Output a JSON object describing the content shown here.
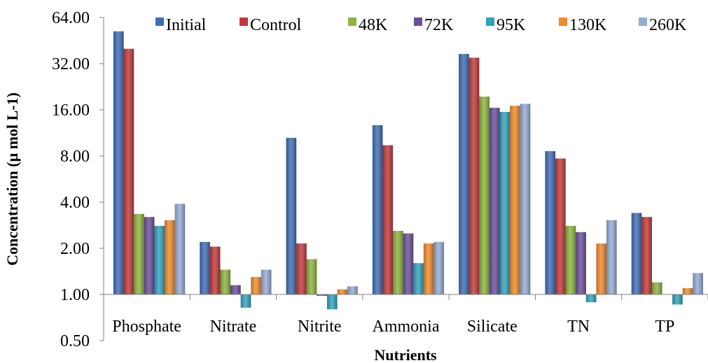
{
  "chart_data": {
    "type": "bar",
    "xlabel": "Nutrients",
    "ylabel": "Concentration (μ mol L-1)",
    "y_scale": "log2",
    "ylim": [
      0.5,
      64
    ],
    "yticks": [
      "0.50",
      "1.00",
      "2.00",
      "4.00",
      "8.00",
      "16.00",
      "32.00",
      "64.00"
    ],
    "legend_position": "top",
    "grid": false,
    "categories": [
      "Phosphate",
      "Nitrate",
      "Nitrite",
      "Ammonia",
      "Silicate",
      "TN",
      "TP"
    ],
    "series": [
      {
        "name": "Initial",
        "color": "#3F6CB4",
        "values": [
          52.0,
          2.2,
          10.5,
          12.7,
          37.0,
          8.6,
          3.4
        ]
      },
      {
        "name": "Control",
        "color": "#C0393A",
        "values": [
          40.0,
          2.05,
          2.15,
          9.4,
          35.0,
          7.7,
          3.2
        ]
      },
      {
        "name": "48K",
        "color": "#8DB43F",
        "values": [
          3.35,
          1.45,
          1.7,
          2.6,
          19.5,
          2.8,
          1.2
        ]
      },
      {
        "name": "72K",
        "color": "#6B4E9B",
        "values": [
          3.2,
          1.15,
          0.98,
          2.5,
          16.5,
          2.55,
          null
        ]
      },
      {
        "name": "95K",
        "color": "#31A2BE",
        "values": [
          2.8,
          0.82,
          0.8,
          1.6,
          15.5,
          0.89,
          0.86
        ]
      },
      {
        "name": "130K",
        "color": "#F08A2B",
        "values": [
          3.05,
          1.3,
          1.08,
          2.15,
          17.0,
          2.15,
          1.1
        ]
      },
      {
        "name": "260K",
        "color": "#94ABD5",
        "values": [
          3.9,
          1.45,
          1.13,
          2.2,
          17.5,
          3.05,
          1.38
        ]
      }
    ]
  }
}
